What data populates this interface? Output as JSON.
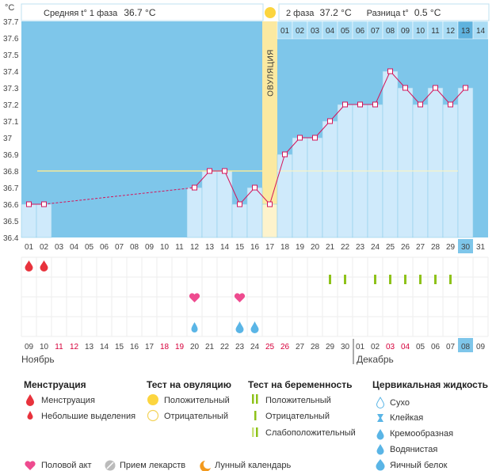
{
  "unit_label": "°C",
  "header": {
    "phase1_label": "Средняя t° 1 фаза",
    "phase1_value": "36.7 °C",
    "phase2_label": "2 фаза",
    "phase2_value": "37.2 °C",
    "diff_label": "Разница t°",
    "diff_value": "0.5 °C"
  },
  "ovulation_label": "ОВУЛЯЦИЯ",
  "chart_data": {
    "type": "line",
    "ylim": [
      36.4,
      37.7
    ],
    "y_ticks": [
      "37.7",
      "37.6",
      "37.5",
      "37.4",
      "37.3",
      "37.2",
      "37.1",
      "37",
      "36.9",
      "36.8",
      "36.7",
      "36.6",
      "36.5",
      "36.4"
    ],
    "cycle_days": [
      "01",
      "02",
      "03",
      "04",
      "05",
      "06",
      "07",
      "08",
      "09",
      "10",
      "11",
      "12",
      "13",
      "14",
      "15",
      "16",
      "17",
      "18",
      "19",
      "20",
      "21",
      "22",
      "23",
      "24",
      "25",
      "26",
      "27",
      "28",
      "29",
      "30",
      "31"
    ],
    "phase2_days": [
      "01",
      "02",
      "03",
      "04",
      "05",
      "06",
      "07",
      "08",
      "09",
      "10",
      "11",
      "12",
      "13",
      "14"
    ],
    "calendar_days": [
      "09",
      "10",
      "11",
      "12",
      "13",
      "14",
      "15",
      "16",
      "17",
      "18",
      "19",
      "20",
      "21",
      "22",
      "23",
      "24",
      "25",
      "26",
      "27",
      "28",
      "29",
      "30",
      "01",
      "02",
      "03",
      "04",
      "05",
      "06",
      "07",
      "08",
      "09"
    ],
    "calendar_red": [
      2,
      3,
      9,
      10,
      16,
      17,
      24,
      25
    ],
    "today_index": 29,
    "ovulation_index": 16,
    "coverline": 36.8,
    "series": [
      {
        "values": [
          36.6,
          36.6,
          null,
          null,
          null,
          null,
          null,
          null,
          null,
          null,
          null,
          36.7,
          36.8,
          36.8,
          36.6,
          36.7,
          36.6,
          36.9,
          37.0,
          37.0,
          37.1,
          37.2,
          37.2,
          37.2,
          37.4,
          37.3,
          37.2,
          37.3,
          37.2,
          37.3,
          null
        ]
      }
    ],
    "markers": {
      "menstruation": [
        0,
        1
      ],
      "pregnancy_test_positive": [
        20,
        21,
        23,
        24,
        25,
        26,
        27,
        28
      ],
      "intercourse": [
        11,
        14
      ],
      "cervical_fluid": [
        11,
        14,
        15
      ]
    }
  },
  "month_left": "Ноябрь",
  "month_right": "Декабрь",
  "legend": {
    "menstruation": {
      "title": "Менструация",
      "items": [
        "Менструация",
        "Небольшие выделения"
      ]
    },
    "ovulation_test": {
      "title": "Тест на овуляцию",
      "items": [
        "Положительный",
        "Отрицательный"
      ]
    },
    "pregnancy_test": {
      "title": "Тест на беременность",
      "items": [
        "Положительный",
        "Отрицательный",
        "Слабоположительный"
      ]
    },
    "cervical": {
      "title": "Цервикальная жидкость",
      "items": [
        "Сухо",
        "Клейкая",
        "Кремообразная",
        "Водянистая",
        "Яичный белок"
      ]
    },
    "bottom": [
      "Половой акт",
      "Прием лекарств",
      "Лунный календарь"
    ]
  },
  "colors": {
    "phase_bg": "#7ec6ea",
    "bar_fill": "#cfeafb",
    "bar_stroke": "#8fcde9",
    "ovulation_band": "#fbe9a1",
    "line": "#d4145a",
    "coverline": "#f4e99a",
    "menstruation": "#e8323c",
    "pregnancy_test": "#8ec21a",
    "intercourse": "#ee4b8f",
    "cervical": "#5ab5e6",
    "today": "#7ec6ea"
  }
}
